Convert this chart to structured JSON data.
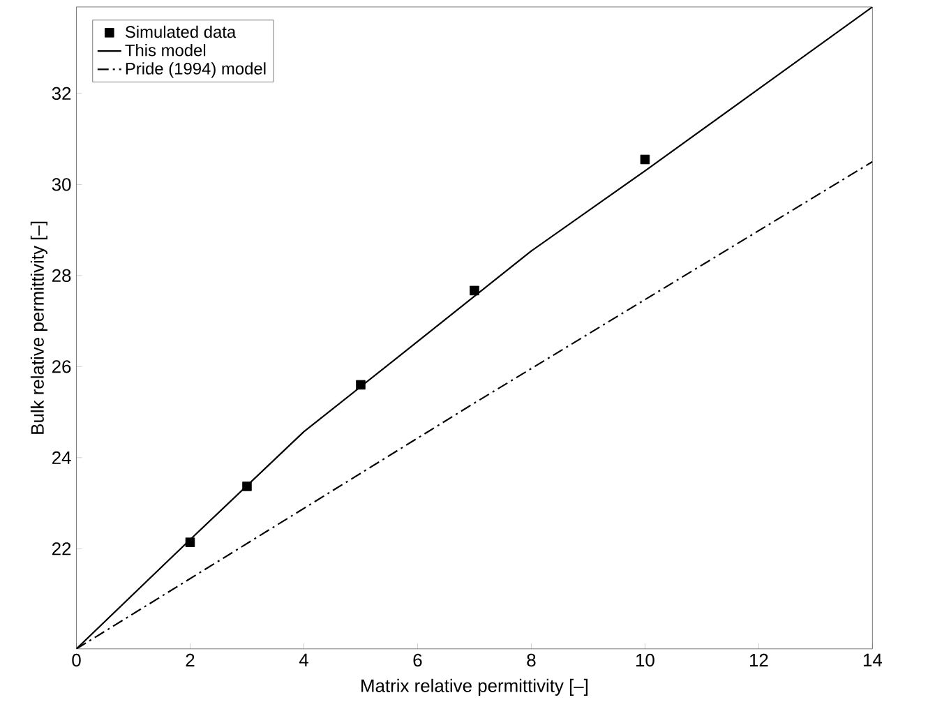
{
  "chart_data": {
    "type": "line",
    "xlabel": "Matrix relative permittivity [–]",
    "ylabel": "Bulk relative permittivity [–]",
    "xlim": [
      0,
      14
    ],
    "ylim": [
      19.8,
      33.9
    ],
    "xticks": [
      0,
      2,
      4,
      6,
      8,
      10,
      12,
      14
    ],
    "yticks": [
      22,
      24,
      26,
      28,
      30,
      32
    ],
    "legend": "top left",
    "grid": false,
    "series": [
      {
        "name": "Simulated data",
        "type": "scatter",
        "marker": "square",
        "color": "#000000",
        "x": [
          2,
          3,
          5,
          7,
          10
        ],
        "values": [
          22.14,
          23.37,
          25.6,
          27.67,
          30.55
        ]
      },
      {
        "name": "This model",
        "line_style": "solid",
        "color": "#000000",
        "x": [
          0,
          2,
          4,
          6,
          8,
          10,
          12,
          14
        ],
        "values": [
          19.8,
          22.2,
          24.57,
          26.55,
          28.54,
          30.3,
          32.1,
          33.9
        ]
      },
      {
        "name": "Pride (1994) model",
        "type": "line",
        "line_style": "dashdot",
        "color": "#000000",
        "x": [
          0,
          7,
          14
        ],
        "values": [
          19.8,
          25.2,
          30.5
        ]
      }
    ]
  }
}
